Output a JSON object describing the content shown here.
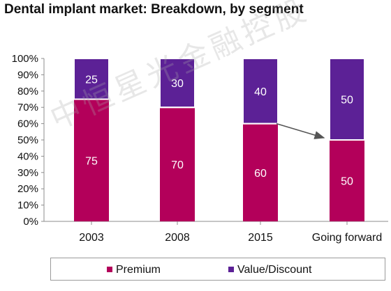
{
  "chart_data": {
    "type": "bar",
    "stacked": true,
    "title": "Dental implant market: Breakdown, by segment",
    "categories": [
      "2003",
      "2008",
      "2015",
      "Going forward"
    ],
    "series": [
      {
        "name": "Premium",
        "values": [
          75,
          70,
          60,
          50
        ],
        "color": "#b3005a"
      },
      {
        "name": "Value/Discount",
        "values": [
          25,
          30,
          40,
          50
        ],
        "color": "#5c2196"
      }
    ],
    "yticks": [
      "0%",
      "10%",
      "20%",
      "30%",
      "40%",
      "50%",
      "60%",
      "70%",
      "80%",
      "90%",
      "100%"
    ],
    "ylim": [
      0,
      100
    ],
    "grid": false,
    "legend_position": "bottom",
    "annotation": "arrow from 2015 Premium top to Going forward Premium top"
  },
  "watermark_text": "中恒星光金融控股"
}
